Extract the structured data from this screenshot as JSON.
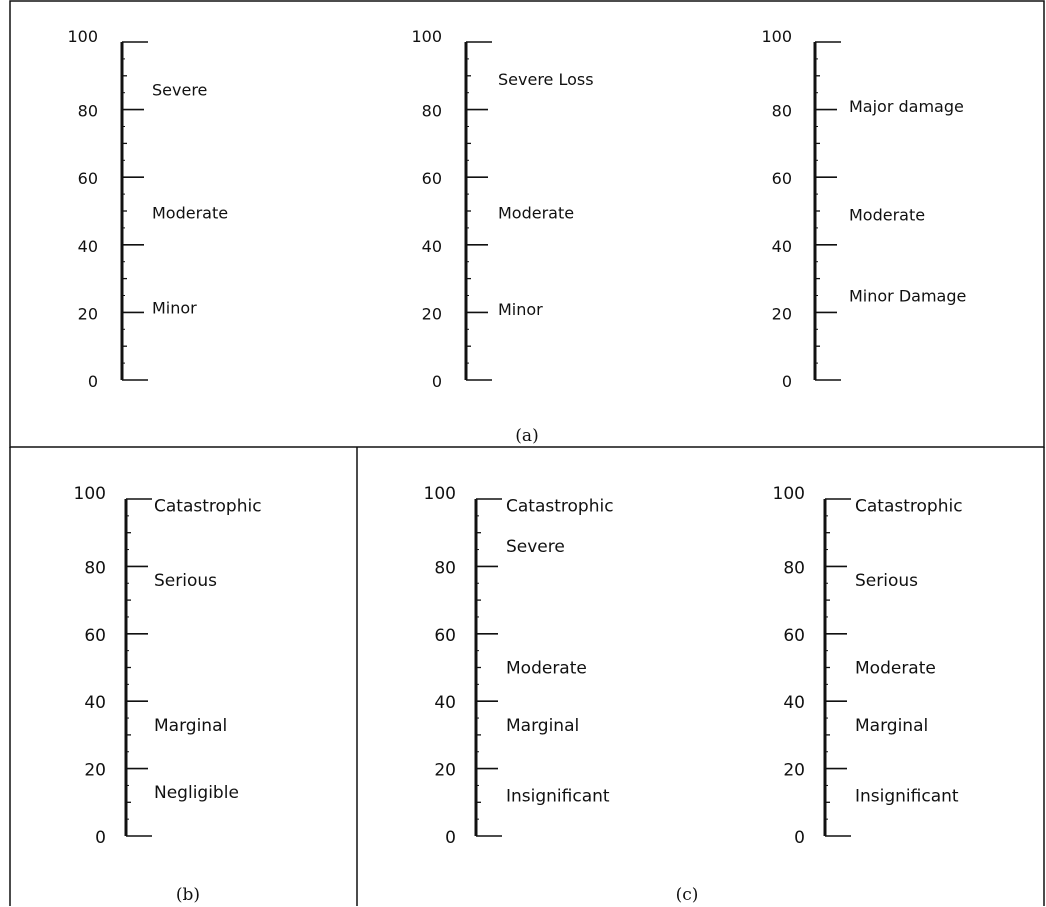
{
  "panels": [
    {
      "caption": "(a)"
    },
    {
      "caption": "(b)"
    },
    {
      "caption": "(c)"
    }
  ],
  "scales": [
    {
      "panel": "a",
      "ticks": [
        "100",
        "80",
        "60",
        "40",
        "20",
        "0"
      ],
      "labels": [
        {
          "text": "Severe",
          "at": 86
        },
        {
          "text": "Moderate",
          "at": 49.5
        },
        {
          "text": "Minor",
          "at": 21.5
        }
      ]
    },
    {
      "panel": "a",
      "ticks": [
        "100",
        "80",
        "60",
        "40",
        "20",
        "0"
      ],
      "labels": [
        {
          "text": "Severe Loss",
          "at": 89
        },
        {
          "text": "Moderate",
          "at": 49.5
        },
        {
          "text": "Minor",
          "at": 21
        }
      ]
    },
    {
      "panel": "a",
      "ticks": [
        "100",
        "80",
        "60",
        "40",
        "20",
        "0"
      ],
      "labels": [
        {
          "text": "Major damage",
          "at": 81
        },
        {
          "text": "Moderate",
          "at": 49
        },
        {
          "text": "Minor Damage",
          "at": 25
        }
      ]
    },
    {
      "panel": "b",
      "ticks": [
        "100",
        "80",
        "60",
        "40",
        "20",
        "0"
      ],
      "labels": [
        {
          "text": "Catastrophic",
          "at": 98
        },
        {
          "text": "Serious",
          "at": 76
        },
        {
          "text": "Marginal",
          "at": 33
        },
        {
          "text": "Negligible",
          "at": 13
        }
      ]
    },
    {
      "panel": "c",
      "ticks": [
        "100",
        "80",
        "60",
        "40",
        "20",
        "0"
      ],
      "labels": [
        {
          "text": "Catastrophic",
          "at": 98
        },
        {
          "text": "Severe",
          "at": 86
        },
        {
          "text": "Moderate",
          "at": 50
        },
        {
          "text": "Marginal",
          "at": 33
        },
        {
          "text": "Insignificant",
          "at": 12
        }
      ]
    },
    {
      "panel": "c",
      "ticks": [
        "100",
        "80",
        "60",
        "40",
        "20",
        "0"
      ],
      "labels": [
        {
          "text": "Catastrophic",
          "at": 98
        },
        {
          "text": "Serious",
          "at": 76
        },
        {
          "text": "Moderate",
          "at": 50
        },
        {
          "text": "Marginal",
          "at": 33
        },
        {
          "text": "Insignificant",
          "at": 12
        }
      ]
    }
  ]
}
